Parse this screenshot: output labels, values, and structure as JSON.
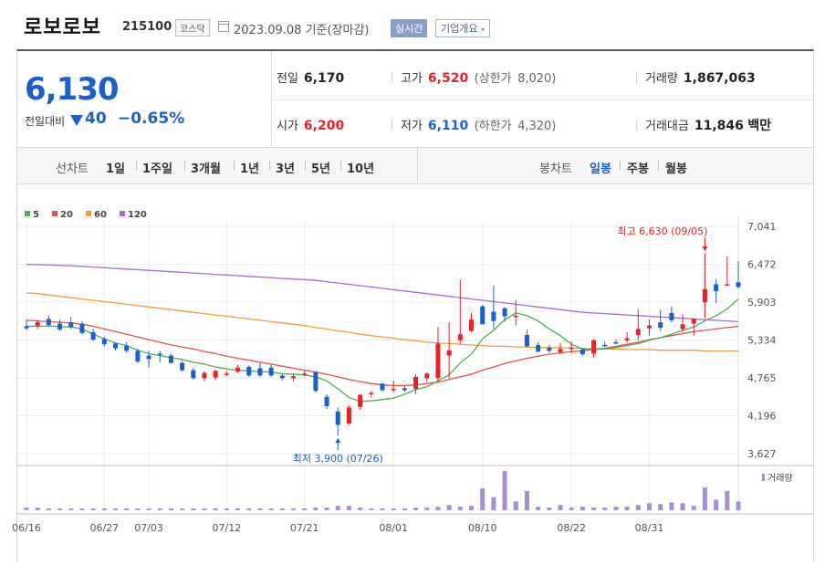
{
  "header": {
    "stock_name": "로보로보",
    "stock_code": "215100",
    "market": "코스닥",
    "date": "2023.09.08 기준(장마감)",
    "realtime_button": "실시간",
    "company_button": "기업개요",
    "company_button_arrow": "▾"
  },
  "summary": {
    "price": "6,130",
    "change_label": "전일대비",
    "change_value": "40",
    "change_rate": "−0.65%"
  },
  "details": {
    "prev_close_label": "전일",
    "prev_close": "6,170",
    "high_label": "고가",
    "high": "6,520",
    "upper_limit_label": "(상한가",
    "upper_limit": "8,020)",
    "volume_label": "거래량",
    "volume": "1,867,063",
    "open_label": "시가",
    "open": "6,200",
    "low_label": "저가",
    "low": "6,110",
    "lower_limit_label": "(하한가",
    "lower_limit": "4,320)",
    "amount_label": "거래대금",
    "amount": "11,846",
    "amount_unit": "백만"
  },
  "toolbar": {
    "line_chart_label": "선차트",
    "line_periods": [
      "1일",
      "1주일",
      "3개월",
      "1년",
      "3년",
      "5년",
      "10년"
    ],
    "candle_chart_label": "봉차트",
    "candle_periods": [
      "일봉",
      "주봉",
      "월봉"
    ],
    "active_candle_period": "일봉"
  },
  "chart_data": {
    "type": "candlestick",
    "legend": [
      {
        "name": "5",
        "color": "#4caf50"
      },
      {
        "name": "20",
        "color": "#e84f4f"
      },
      {
        "name": "60",
        "color": "#f39c3c"
      },
      {
        "name": "120",
        "color": "#a66bd3"
      }
    ],
    "y_ticks": [
      "7,041",
      "6,472",
      "5,903",
      "5,334",
      "4,765",
      "4,196",
      "3,627"
    ],
    "ylim": [
      3627,
      7041
    ],
    "x_tick_labels": [
      "06/16",
      "06/27",
      "07/03",
      "07/12",
      "07/21",
      "08/01",
      "08/10",
      "08/22",
      "08/31"
    ],
    "x_tick_index": [
      0,
      7,
      11,
      18,
      25,
      33,
      41,
      49,
      56
    ],
    "annotation_high": "최고 6,630 (09/05)",
    "annotation_low": "최저 3,900 (07/26)",
    "volume_label": "거래량",
    "up_color": "#e2232a",
    "down_color": "#1c5fc8",
    "candles": [
      {
        "o": 5540,
        "h": 5640,
        "l": 5480,
        "c": 5510
      },
      {
        "o": 5550,
        "h": 5640,
        "l": 5500,
        "c": 5600
      },
      {
        "o": 5650,
        "h": 5700,
        "l": 5540,
        "c": 5560
      },
      {
        "o": 5580,
        "h": 5640,
        "l": 5470,
        "c": 5490
      },
      {
        "o": 5600,
        "h": 5680,
        "l": 5500,
        "c": 5530
      },
      {
        "o": 5580,
        "h": 5620,
        "l": 5420,
        "c": 5440
      },
      {
        "o": 5450,
        "h": 5500,
        "l": 5320,
        "c": 5340
      },
      {
        "o": 5350,
        "h": 5380,
        "l": 5240,
        "c": 5270
      },
      {
        "o": 5280,
        "h": 5300,
        "l": 5180,
        "c": 5210
      },
      {
        "o": 5250,
        "h": 5300,
        "l": 5140,
        "c": 5170
      },
      {
        "o": 5170,
        "h": 5200,
        "l": 4990,
        "c": 5010
      },
      {
        "o": 5100,
        "h": 5180,
        "l": 4920,
        "c": 5050
      },
      {
        "o": 5130,
        "h": 5170,
        "l": 5000,
        "c": 5120
      },
      {
        "o": 5100,
        "h": 5130,
        "l": 4980,
        "c": 4990
      },
      {
        "o": 4990,
        "h": 5020,
        "l": 4860,
        "c": 4880
      },
      {
        "o": 4880,
        "h": 4920,
        "l": 4740,
        "c": 4760
      },
      {
        "o": 4760,
        "h": 4860,
        "l": 4710,
        "c": 4840
      },
      {
        "o": 4770,
        "h": 4890,
        "l": 4730,
        "c": 4870
      },
      {
        "o": 4810,
        "h": 4870,
        "l": 4790,
        "c": 4830
      },
      {
        "o": 4860,
        "h": 4960,
        "l": 4840,
        "c": 4920
      },
      {
        "o": 4930,
        "h": 4950,
        "l": 4780,
        "c": 4800
      },
      {
        "o": 4910,
        "h": 4990,
        "l": 4780,
        "c": 4800
      },
      {
        "o": 4920,
        "h": 4960,
        "l": 4780,
        "c": 4800
      },
      {
        "o": 4800,
        "h": 4820,
        "l": 4730,
        "c": 4760
      },
      {
        "o": 4760,
        "h": 4830,
        "l": 4710,
        "c": 4790
      },
      {
        "o": 4830,
        "h": 4870,
        "l": 4790,
        "c": 4830
      },
      {
        "o": 4850,
        "h": 4870,
        "l": 4550,
        "c": 4570
      },
      {
        "o": 4480,
        "h": 4520,
        "l": 4300,
        "c": 4340
      },
      {
        "o": 4260,
        "h": 4320,
        "l": 3900,
        "c": 4060
      },
      {
        "o": 4080,
        "h": 4350,
        "l": 4060,
        "c": 4320
      },
      {
        "o": 4330,
        "h": 4520,
        "l": 4280,
        "c": 4510
      },
      {
        "o": 4530,
        "h": 4570,
        "l": 4470,
        "c": 4540
      },
      {
        "o": 4680,
        "h": 4680,
        "l": 4560,
        "c": 4580
      },
      {
        "o": 4590,
        "h": 4720,
        "l": 4550,
        "c": 4600
      },
      {
        "o": 4610,
        "h": 4650,
        "l": 4550,
        "c": 4580
      },
      {
        "o": 4600,
        "h": 4820,
        "l": 4520,
        "c": 4780
      },
      {
        "o": 4760,
        "h": 4850,
        "l": 4700,
        "c": 4830
      },
      {
        "o": 4760,
        "h": 5530,
        "l": 4700,
        "c": 5280
      },
      {
        "o": 5100,
        "h": 5600,
        "l": 4760,
        "c": 5180
      },
      {
        "o": 5330,
        "h": 6240,
        "l": 5280,
        "c": 5420
      },
      {
        "o": 5470,
        "h": 5740,
        "l": 5450,
        "c": 5640
      },
      {
        "o": 5840,
        "h": 5860,
        "l": 5600,
        "c": 5570
      },
      {
        "o": 5760,
        "h": 6150,
        "l": 5500,
        "c": 5620
      },
      {
        "o": 5810,
        "h": 5830,
        "l": 5610,
        "c": 5690
      },
      {
        "o": 5690,
        "h": 5930,
        "l": 5550,
        "c": 5700
      },
      {
        "o": 5410,
        "h": 5490,
        "l": 5220,
        "c": 5240
      },
      {
        "o": 5260,
        "h": 5300,
        "l": 5150,
        "c": 5160
      },
      {
        "o": 5220,
        "h": 5260,
        "l": 5140,
        "c": 5170
      },
      {
        "o": 5150,
        "h": 5290,
        "l": 5120,
        "c": 5200
      },
      {
        "o": 5220,
        "h": 5310,
        "l": 5130,
        "c": 5220
      },
      {
        "o": 5190,
        "h": 5210,
        "l": 5100,
        "c": 5120
      },
      {
        "o": 5130,
        "h": 5350,
        "l": 5070,
        "c": 5330
      },
      {
        "o": 5260,
        "h": 5310,
        "l": 5230,
        "c": 5250
      },
      {
        "o": 5300,
        "h": 5340,
        "l": 5270,
        "c": 5280
      },
      {
        "o": 5330,
        "h": 5450,
        "l": 5290,
        "c": 5360
      },
      {
        "o": 5410,
        "h": 5800,
        "l": 5330,
        "c": 5500
      },
      {
        "o": 5510,
        "h": 5640,
        "l": 5400,
        "c": 5550
      },
      {
        "o": 5600,
        "h": 5790,
        "l": 5470,
        "c": 5520
      },
      {
        "o": 5740,
        "h": 5840,
        "l": 5600,
        "c": 5630
      },
      {
        "o": 5500,
        "h": 5720,
        "l": 5450,
        "c": 5570
      },
      {
        "o": 5580,
        "h": 5660,
        "l": 5400,
        "c": 5650
      },
      {
        "o": 5900,
        "h": 6630,
        "l": 5660,
        "c": 6100
      },
      {
        "o": 6170,
        "h": 6250,
        "l": 5890,
        "c": 6070
      },
      {
        "o": 6170,
        "h": 6590,
        "l": 6160,
        "c": 6170
      },
      {
        "o": 6200,
        "h": 6520,
        "l": 6110,
        "c": 6130
      }
    ],
    "volume": [
      3,
      3,
      2,
      2,
      2,
      2,
      2,
      2,
      2,
      2,
      2,
      2,
      2,
      2,
      2,
      2,
      2,
      2,
      2,
      2,
      2,
      2,
      2,
      2,
      2,
      2,
      3,
      3,
      5,
      5,
      3,
      2,
      2,
      2,
      2,
      3,
      3,
      4,
      6,
      4,
      5,
      25,
      15,
      45,
      10,
      22,
      4,
      3,
      6,
      3,
      4,
      3,
      3,
      4,
      4,
      6,
      8,
      7,
      9,
      8,
      5,
      26,
      12,
      22,
      10
    ],
    "ma5": [
      5540,
      5540,
      5545,
      5535,
      5530,
      5500,
      5420,
      5350,
      5290,
      5250,
      5180,
      5130,
      5100,
      5070,
      5040,
      5000,
      4970,
      4930,
      4900,
      4880,
      4870,
      4860,
      4850,
      4830,
      4820,
      4810,
      4780,
      4720,
      4600,
      4470,
      4410,
      4420,
      4440,
      4460,
      4520,
      4590,
      4630,
      4720,
      4810,
      4990,
      5120,
      5350,
      5480,
      5640,
      5740,
      5700,
      5620,
      5500,
      5400,
      5270,
      5200,
      5190,
      5200,
      5220,
      5250,
      5280,
      5330,
      5370,
      5420,
      5480,
      5530,
      5620,
      5700,
      5800,
      5950
    ],
    "ma20": [
      5630,
      5620,
      5610,
      5600,
      5590,
      5570,
      5540,
      5500,
      5460,
      5420,
      5380,
      5340,
      5300,
      5260,
      5230,
      5200,
      5160,
      5130,
      5090,
      5060,
      5030,
      5000,
      4970,
      4940,
      4910,
      4880,
      4850,
      4820,
      4780,
      4740,
      4710,
      4680,
      4660,
      4650,
      4650,
      4660,
      4680,
      4700,
      4740,
      4780,
      4820,
      4880,
      4930,
      4980,
      5020,
      5060,
      5090,
      5120,
      5140,
      5160,
      5170,
      5190,
      5210,
      5240,
      5270,
      5300,
      5340,
      5370,
      5400,
      5430,
      5460,
      5480,
      5500,
      5520,
      5540
    ],
    "ma60": [
      6040,
      6030,
      6010,
      5990,
      5970,
      5950,
      5930,
      5910,
      5890,
      5870,
      5850,
      5830,
      5810,
      5790,
      5770,
      5750,
      5730,
      5710,
      5690,
      5670,
      5650,
      5630,
      5610,
      5590,
      5570,
      5550,
      5520,
      5500,
      5470,
      5450,
      5420,
      5400,
      5380,
      5360,
      5340,
      5320,
      5300,
      5290,
      5280,
      5270,
      5260,
      5250,
      5240,
      5240,
      5230,
      5230,
      5220,
      5220,
      5220,
      5210,
      5210,
      5200,
      5200,
      5200,
      5190,
      5190,
      5190,
      5180,
      5180,
      5180,
      5180,
      5170,
      5170,
      5170,
      5170
    ],
    "ma120": [
      6470,
      6465,
      6460,
      6455,
      6450,
      6440,
      6430,
      6420,
      6410,
      6400,
      6390,
      6380,
      6370,
      6360,
      6350,
      6340,
      6330,
      6320,
      6310,
      6300,
      6290,
      6280,
      6270,
      6260,
      6250,
      6240,
      6230,
      6210,
      6190,
      6170,
      6150,
      6130,
      6110,
      6090,
      6070,
      6050,
      6030,
      6010,
      5990,
      5970,
      5950,
      5930,
      5910,
      5890,
      5870,
      5850,
      5830,
      5810,
      5790,
      5770,
      5750,
      5740,
      5730,
      5720,
      5710,
      5700,
      5690,
      5680,
      5670,
      5660,
      5650,
      5640,
      5630,
      5620,
      5610
    ]
  }
}
